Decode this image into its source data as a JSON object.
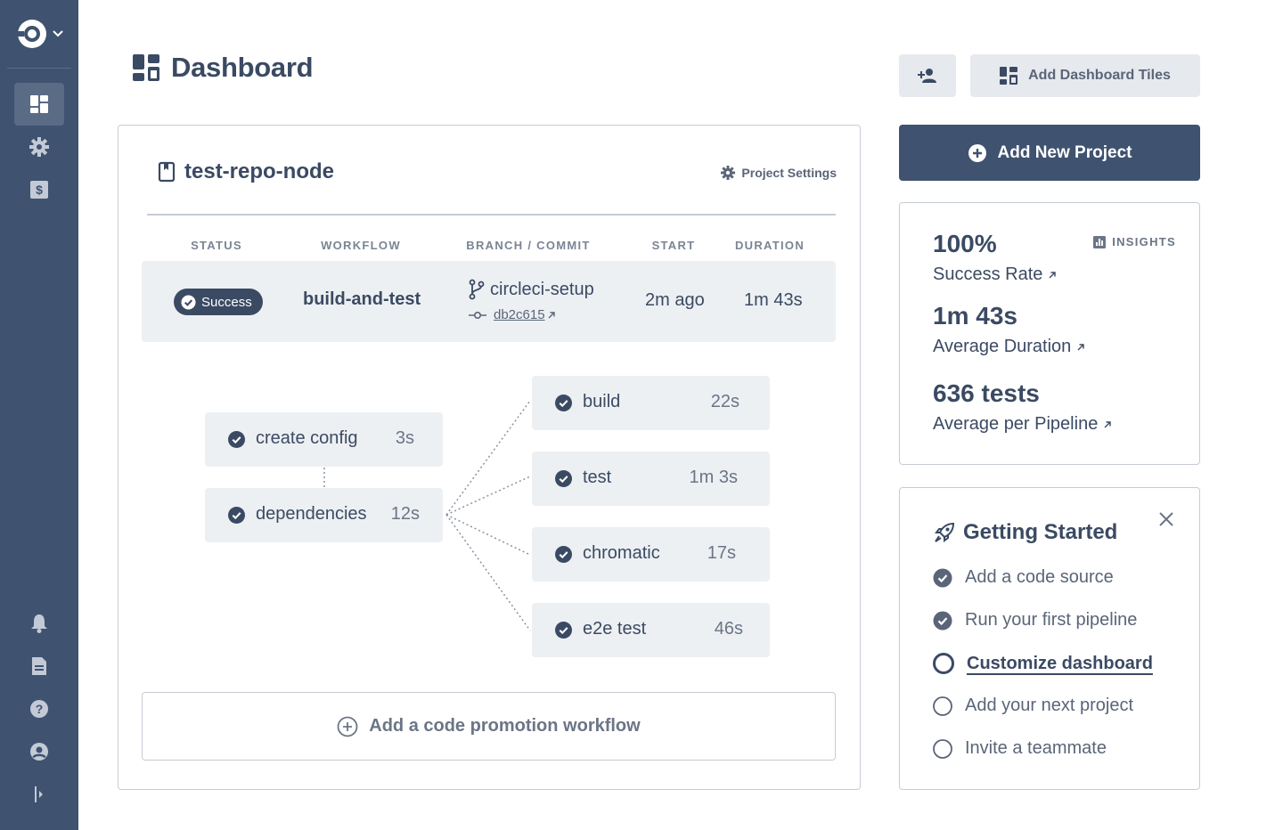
{
  "header": {
    "title": "Dashboard",
    "add_tiles_label": "Add Dashboard Tiles"
  },
  "project": {
    "name": "test-repo-node",
    "settings_label": "Project Settings",
    "columns": [
      "STATUS",
      "WORKFLOW",
      "BRANCH / COMMIT",
      "START",
      "DURATION"
    ],
    "pipeline": {
      "status": "Success",
      "workflow": "build-and-test",
      "branch": "circleci-setup",
      "commit": "db2c615",
      "start": "2m ago",
      "duration": "1m 43s"
    },
    "jobs": [
      {
        "name": "create config",
        "time": "3s"
      },
      {
        "name": "dependencies",
        "time": "12s"
      },
      {
        "name": "build",
        "time": "22s"
      },
      {
        "name": "test",
        "time": "1m 3s"
      },
      {
        "name": "chromatic",
        "time": "17s"
      },
      {
        "name": "e2e test",
        "time": "46s"
      }
    ],
    "promo_label": "Add a code promotion workflow"
  },
  "right": {
    "add_project_label": "Add New Project",
    "insights_label": "INSIGHTS",
    "metrics": [
      {
        "value": "100%",
        "label": "Success Rate"
      },
      {
        "value": "1m 43s",
        "label": "Average Duration"
      },
      {
        "value": "636 tests",
        "label": "Average per Pipeline"
      }
    ],
    "getting_started": {
      "title": "Getting Started",
      "items": [
        {
          "label": "Add a code source",
          "done": true
        },
        {
          "label": "Run your first pipeline",
          "done": true
        },
        {
          "label": "Customize dashboard",
          "done": false,
          "current": true
        },
        {
          "label": "Add your next project",
          "done": false
        },
        {
          "label": "Invite a teammate",
          "done": false
        }
      ]
    }
  },
  "colors": {
    "sidebar": "#3f5270",
    "primary": "#3f5270",
    "text": "#3b4a63",
    "muted": "#6b7586",
    "surface": "#edf0f3",
    "border": "#c6ccd5"
  },
  "icons": {
    "sidebar_top": [
      "dashboard-icon",
      "settings-icon",
      "billing-icon"
    ],
    "sidebar_bottom": [
      "bell-icon",
      "docs-icon",
      "help-icon",
      "user-icon",
      "collapse-icon"
    ]
  }
}
